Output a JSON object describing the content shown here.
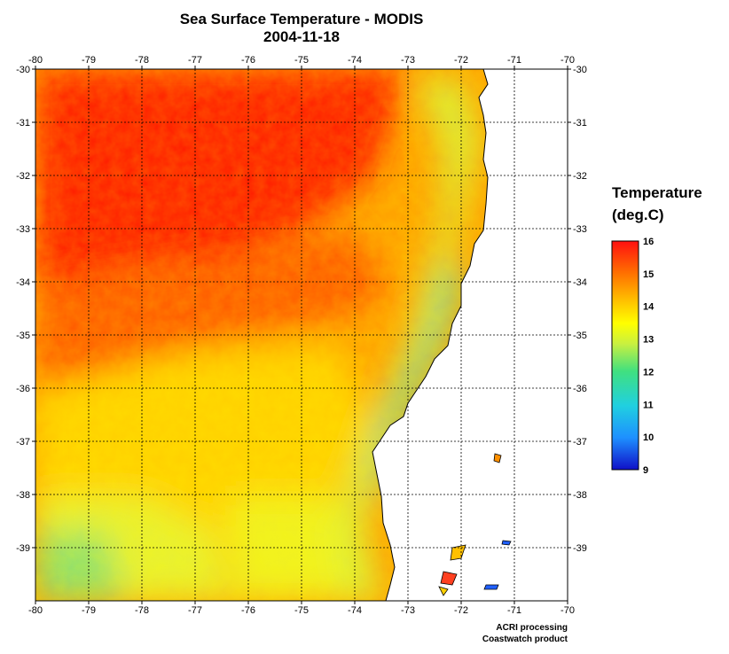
{
  "title": "Sea Surface Temperature - MODIS",
  "date": "2004-11-18",
  "map": {
    "lon_range": [
      -80,
      -70
    ],
    "lat_range": [
      -40,
      -30
    ],
    "lon_ticks": [
      "-80",
      "-79",
      "-78",
      "-77",
      "-76",
      "-75",
      "-74",
      "-73",
      "-72",
      "-71",
      "-70"
    ],
    "lat_ticks": [
      "-30",
      "-31",
      "-32",
      "-33",
      "-34",
      "-35",
      "-36",
      "-37",
      "-38",
      "-39"
    ],
    "grid": true,
    "land_color": "#ffffff",
    "coast_color": "#000000"
  },
  "legend": {
    "title_line1": "Temperature",
    "title_line2": "(deg.C)",
    "labels": [
      "16",
      "15",
      "14",
      "13",
      "12",
      "11",
      "10",
      "9"
    ],
    "min": 9,
    "max": 16,
    "colors": [
      "#1010c8",
      "#1e90ff",
      "#20d0e0",
      "#40e080",
      "#c8f040",
      "#ffff00",
      "#ffc000",
      "#ff7000",
      "#ff1010"
    ]
  },
  "credits": {
    "line1": "ACRI processing",
    "line2": "Coastwatch product"
  }
}
